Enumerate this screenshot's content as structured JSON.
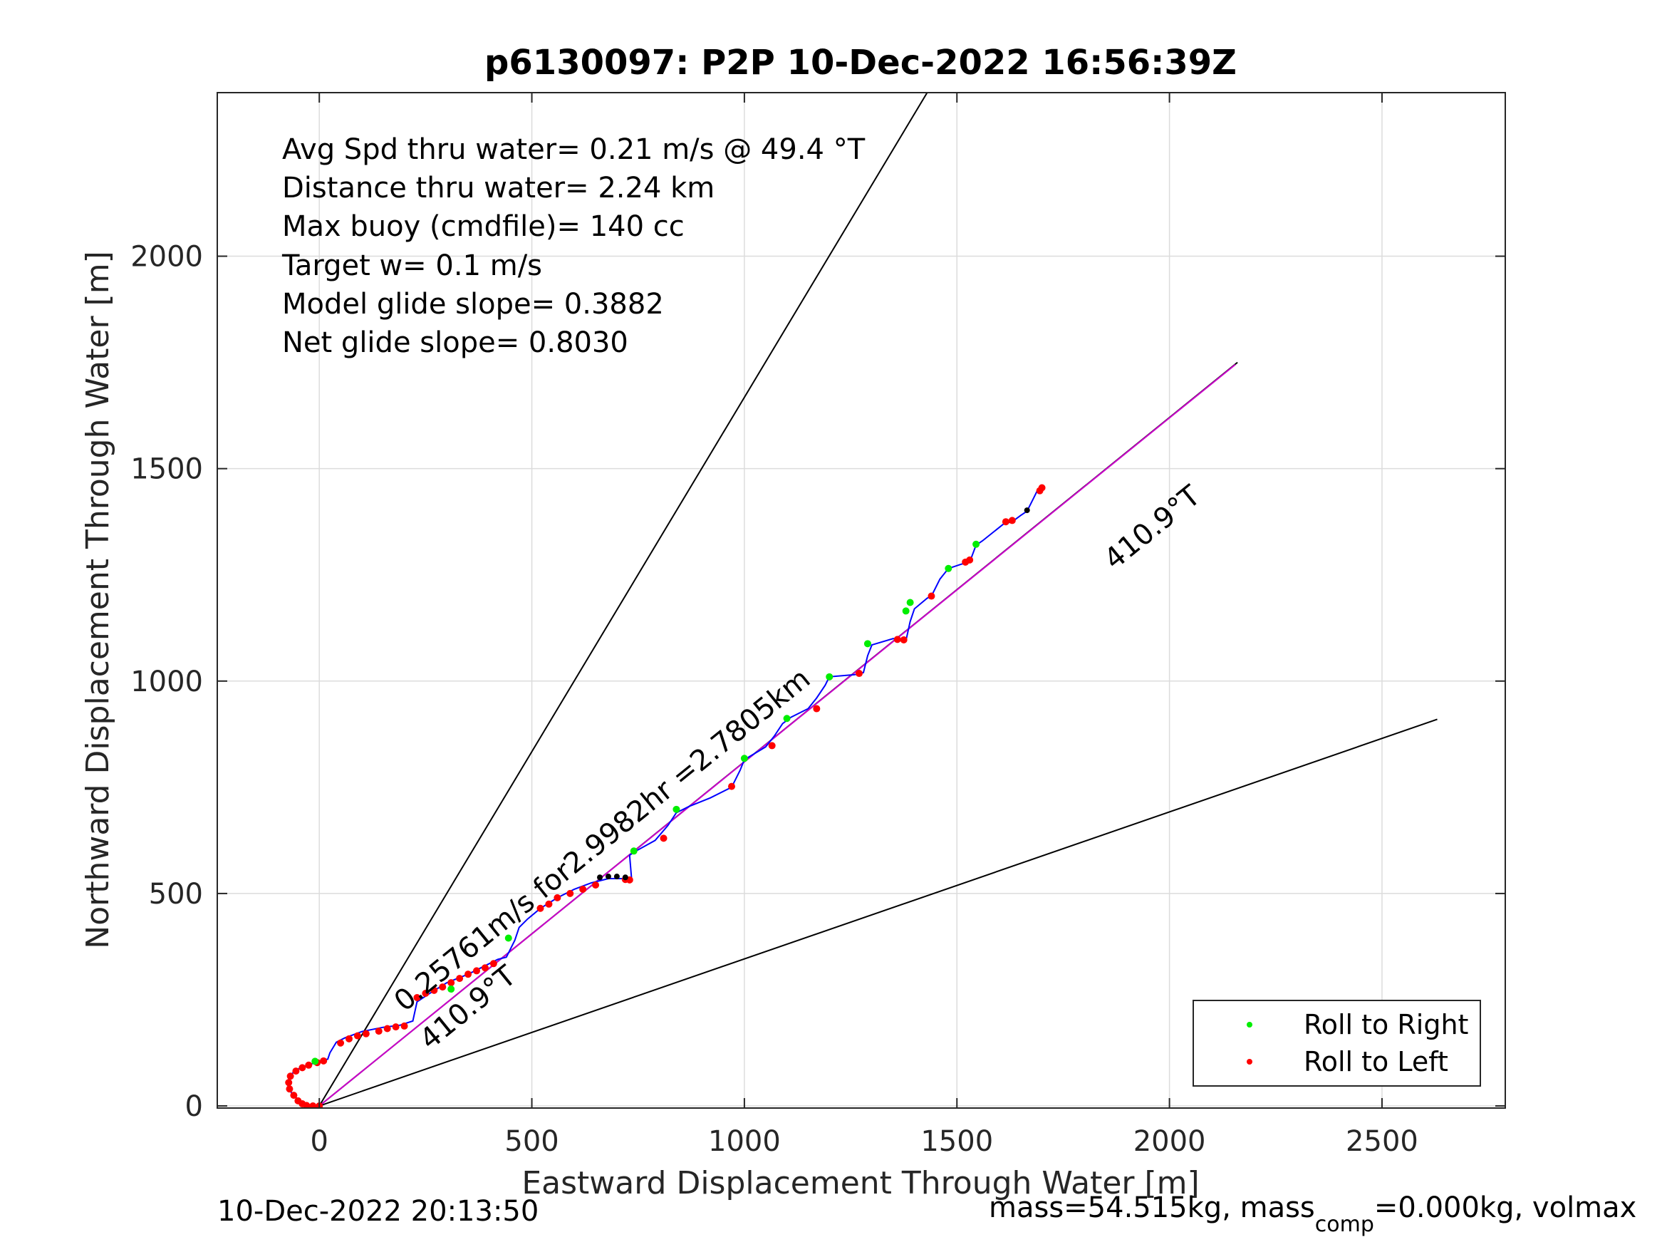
{
  "chart_data": {
    "type": "line",
    "title": "p6130097: P2P 10-Dec-2022 16:56:39Z",
    "xlabel": "Eastward Displacement Through Water [m]",
    "ylabel": "Northward Displacement Through Water [m]",
    "xlim": [
      -240,
      2790
    ],
    "ylim": [
      -5,
      2385
    ],
    "xticks": [
      0,
      500,
      1000,
      1500,
      2000,
      2500
    ],
    "yticks": [
      0,
      500,
      1000,
      1500,
      2000
    ],
    "xtick_labels": [
      "0",
      "500",
      "1000",
      "1500",
      "2000",
      "2500"
    ],
    "ytick_labels": [
      "0",
      "500",
      "1000",
      "1500",
      "2000"
    ],
    "grid": true,
    "info_lines": [
      "Avg Spd thru water=  0.21 m/s @  49.4 °T",
      "Distance thru water=  2.24 km",
      "Max buoy (cmdfile)= 140 cc",
      "Target w= 0.1 m/s",
      "Model glide slope= 0.3882",
      "Net glide slope= 0.8030"
    ],
    "reference_lines": [
      {
        "from": [
          0,
          0
        ],
        "to": [
          1430,
          2385
        ],
        "color": "#000000"
      },
      {
        "from": [
          0,
          0
        ],
        "to": [
          2160,
          1750
        ],
        "color": "#000000"
      },
      {
        "from": [
          0,
          0
        ],
        "to": [
          2630,
          910
        ],
        "color": "#000000"
      }
    ],
    "target_line": {
      "from": [
        0,
        0
      ],
      "to": [
        2155,
        1745
      ],
      "color": "#cc00cc"
    },
    "annotations": [
      {
        "text": "410.9°T",
        "x": 1870,
        "y": 1260,
        "angle": 39
      },
      {
        "text": "410.9°T",
        "x": 260,
        "y": 130,
        "angle": 39
      },
      {
        "text": "0.25761m/s for2.9982hr =2.7805km",
        "x": 200,
        "y": 220,
        "angle": 39
      }
    ],
    "track": {
      "name": "",
      "color": "#0000ff",
      "x": [
        0,
        -20,
        -45,
        -65,
        -75,
        -70,
        -55,
        -30,
        0,
        20,
        25,
        40,
        60,
        100,
        150,
        190,
        220,
        230,
        260,
        300,
        350,
        400,
        420,
        440,
        460,
        470,
        490,
        520,
        560,
        600,
        640,
        680,
        720,
        735,
        730,
        745,
        790,
        820,
        840,
        870,
        920,
        970,
        990,
        1000,
        1050,
        1070,
        1090,
        1110,
        1150,
        1170,
        1190,
        1200,
        1260,
        1280,
        1290,
        1300,
        1350,
        1380,
        1390,
        1400,
        1430,
        1440,
        1460,
        1480,
        1510,
        1530,
        1545,
        1560,
        1610,
        1630,
        1650,
        1665,
        1680,
        1690,
        1700
      ],
      "y": [
        0,
        0,
        10,
        30,
        50,
        70,
        85,
        95,
        105,
        110,
        125,
        150,
        160,
        175,
        185,
        190,
        200,
        245,
        265,
        290,
        310,
        335,
        345,
        350,
        390,
        420,
        440,
        465,
        490,
        510,
        525,
        535,
        535,
        530,
        590,
        600,
        625,
        660,
        690,
        705,
        725,
        750,
        790,
        815,
        845,
        870,
        900,
        915,
        935,
        960,
        990,
        1010,
        1015,
        1020,
        1060,
        1085,
        1100,
        1095,
        1140,
        1170,
        1195,
        1200,
        1240,
        1265,
        1275,
        1280,
        1320,
        1330,
        1370,
        1375,
        1390,
        1400,
        1430,
        1450,
        1455
      ]
    },
    "roll_right_points": {
      "name": "Roll to Right",
      "color": "#00ee00",
      "x": [
        -10,
        310,
        445,
        740,
        840,
        1000,
        1100,
        1200,
        1290,
        1380,
        1390,
        1480,
        1545
      ],
      "y": [
        105,
        275,
        395,
        600,
        698,
        818,
        912,
        1010,
        1088,
        1165,
        1185,
        1265,
        1322
      ]
    },
    "roll_left_points": {
      "name": "Roll to Left",
      "color": "#ff0000",
      "x": [
        -70,
        -60,
        -50,
        -40,
        -30,
        -15,
        0,
        -72,
        -68,
        -55,
        -40,
        -25,
        -5,
        10,
        50,
        70,
        90,
        110,
        140,
        160,
        180,
        200,
        230,
        250,
        270,
        290,
        310,
        330,
        350,
        370,
        390,
        410,
        520,
        540,
        560,
        590,
        620,
        650,
        720,
        730,
        810,
        970,
        1065,
        1170,
        1270,
        1360,
        1375,
        1440,
        1520,
        1530,
        1615,
        1630,
        1695,
        1700
      ],
      "y": [
        40,
        25,
        12,
        5,
        1,
        0,
        0,
        55,
        70,
        82,
        90,
        96,
        102,
        106,
        148,
        158,
        165,
        170,
        176,
        182,
        186,
        188,
        255,
        265,
        272,
        280,
        290,
        300,
        310,
        318,
        325,
        335,
        465,
        475,
        490,
        500,
        510,
        520,
        533,
        532,
        630,
        752,
        848,
        935,
        1018,
        1098,
        1097,
        1200,
        1280,
        1285,
        1375,
        1378,
        1448,
        1455
      ]
    },
    "black_points": {
      "x": [
        660,
        680,
        700,
        720,
        1665
      ],
      "y": [
        538,
        540,
        540,
        538,
        1402
      ]
    },
    "legend": {
      "placement": "bottom-right",
      "entries": [
        {
          "label": "Roll to Right",
          "color": "#00ee00"
        },
        {
          "label": "Roll to Left",
          "color": "#ff0000"
        }
      ]
    }
  },
  "footer": {
    "timestamp": "10-Dec-2022 20:13:50",
    "mass_prefix": "mass=54.515kg, mass",
    "mass_sub": "comp",
    "mass_suffix": "=0.000kg, volmax"
  }
}
